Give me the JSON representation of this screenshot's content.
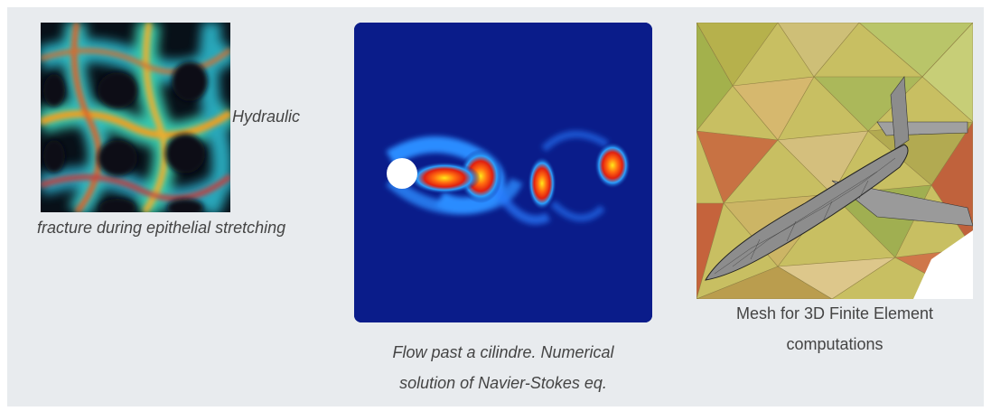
{
  "figures": [
    {
      "image": "epithelial-fluorescence-image",
      "caption_line1": "Hydraulic",
      "caption_line2": "fracture during epithelial stretching"
    },
    {
      "image": "cylinder-wake-vortex-simulation",
      "caption_line1": "Flow past a cilindre. Numerical",
      "caption_line2": "solution of Navier-Stokes eq."
    },
    {
      "image": "aircraft-finite-element-mesh",
      "caption_line1": "Mesh for 3D Finite Element",
      "caption_line2": "computations"
    }
  ],
  "colors": {
    "panel": "#e8ebee",
    "caption_text": "#444444",
    "flow_background": "#0a1c8a"
  }
}
